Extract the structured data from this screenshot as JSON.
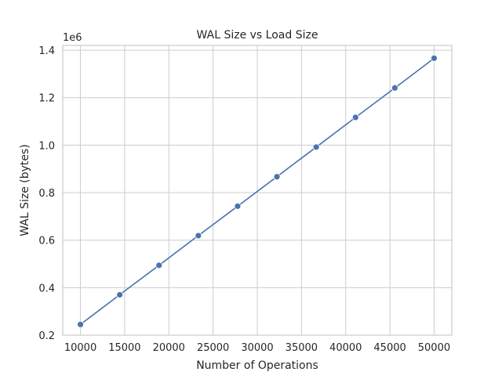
{
  "chart_data": {
    "type": "line",
    "title": "WAL Size vs Load Size",
    "xlabel": "Number of Operations",
    "ylabel": "WAL Size (bytes)",
    "y_offset_label": "1e6",
    "xlim": [
      8000,
      52000
    ],
    "ylim": [
      0.2,
      1.42
    ],
    "x_ticks": [
      10000,
      15000,
      20000,
      25000,
      30000,
      35000,
      40000,
      45000,
      50000
    ],
    "x_tick_labels": [
      "10000",
      "15000",
      "20000",
      "25000",
      "30000",
      "35000",
      "40000",
      "45000",
      "50000"
    ],
    "y_ticks": [
      0.2,
      0.4,
      0.6,
      0.8,
      1.0,
      1.2,
      1.4
    ],
    "y_tick_labels": [
      "0.2",
      "0.4",
      "0.6",
      "0.8",
      "1.0",
      "1.2",
      "1.4"
    ],
    "grid": true,
    "series": [
      {
        "color": "#4c72b0",
        "marker": "circle",
        "x": [
          10000,
          14444,
          18889,
          23333,
          27778,
          32222,
          36667,
          41111,
          45556,
          50000
        ],
        "y": [
          0.245,
          0.37,
          0.494,
          0.619,
          0.743,
          0.867,
          0.992,
          1.117,
          1.241,
          1.366
        ]
      }
    ]
  }
}
